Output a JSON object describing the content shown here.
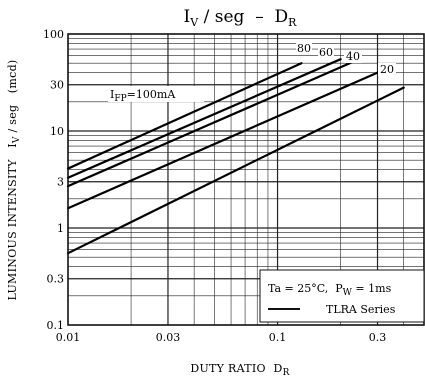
{
  "chart_data": {
    "type": "line",
    "title": {
      "main": "I",
      "sub": "V",
      "rest": " / seg  –  D",
      "sub2": "R"
    },
    "xlabel": {
      "main": "DUTY RATIO  D",
      "sub": "R"
    },
    "ylabel": {
      "left": "LUMINOUS INTENSITY   I",
      "sub": "V",
      "right": " / seg   (mcd)"
    },
    "x_scale": "log",
    "y_scale": "log",
    "xlim": [
      0.01,
      0.5
    ],
    "ylim": [
      0.1,
      100
    ],
    "x_ticks": [
      {
        "value": 0.01,
        "label": "0.01"
      },
      {
        "value": 0.03,
        "label": "0.03"
      },
      {
        "value": 0.1,
        "label": "0.1"
      },
      {
        "value": 0.3,
        "label": "0.3"
      }
    ],
    "y_ticks": [
      {
        "value": 100,
        "label": "100"
      },
      {
        "value": 30,
        "label": "30"
      },
      {
        "value": 10,
        "label": "10"
      },
      {
        "value": 3,
        "label": "3"
      },
      {
        "value": 1,
        "label": "1"
      },
      {
        "value": 0.3,
        "label": "0.3"
      },
      {
        "value": 0.1,
        "label": "0.1"
      }
    ],
    "grid": true,
    "series": [
      {
        "name": "100mA",
        "x": [
          0.01,
          0.13
        ],
        "y": [
          4.1,
          50
        ]
      },
      {
        "name": "80",
        "x": [
          0.01,
          0.2
        ],
        "y": [
          3.3,
          55
        ]
      },
      {
        "name": "60",
        "x": [
          0.01,
          0.25
        ],
        "y": [
          2.7,
          56
        ]
      },
      {
        "name": "40",
        "x": [
          0.01,
          0.3
        ],
        "y": [
          1.6,
          40
        ]
      },
      {
        "name": "20",
        "x": [
          0.01,
          0.4
        ],
        "y": [
          0.55,
          28
        ]
      }
    ],
    "curve_labels": [
      {
        "text": "I",
        "sub": "FP",
        "rest": "=100mA"
      },
      {
        "text": "80"
      },
      {
        "text": "60"
      },
      {
        "text": "40"
      },
      {
        "text": "20"
      }
    ],
    "legend": {
      "condition": {
        "pre": "Ta = 25°C,  P",
        "sub": "W",
        "post": " = 1ms"
      },
      "series_label": "TLRA Series",
      "placement": "bottom-right"
    }
  }
}
